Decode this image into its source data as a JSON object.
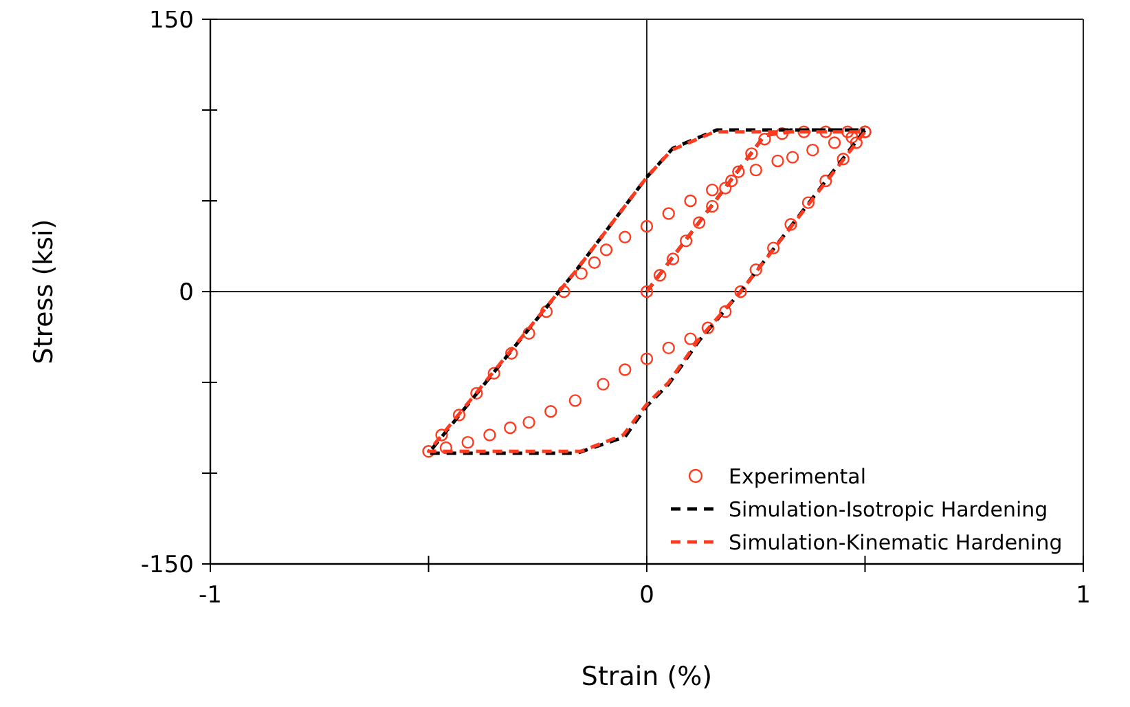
{
  "chart_data": {
    "type": "line",
    "xlabel": "Strain (%)",
    "ylabel": "Stress (ksi)",
    "xlim": [
      -1,
      1
    ],
    "ylim": [
      -150,
      150
    ],
    "xticks": [
      -1,
      {
        "value": -0.5,
        "label": null
      },
      0,
      {
        "value": 0.5,
        "label": null
      },
      1
    ],
    "yticks": [
      -150,
      {
        "value": -100,
        "label": null
      },
      {
        "value": -50,
        "label": null
      },
      0,
      {
        "value": 50,
        "label": null
      },
      {
        "value": 100,
        "label": null
      },
      150
    ],
    "grid": true,
    "legend": "bottom right",
    "series": [
      {
        "name": "Experimental",
        "type": "scatter",
        "marker": "circle",
        "color": "#ff3b1f",
        "x": [
          0,
          0.03,
          0.06,
          0.09,
          0.12,
          0.15,
          0.18,
          0.21,
          0.24,
          0.27,
          0.31,
          0.36,
          0.41,
          0.46,
          0.5,
          0.48,
          0.45,
          0.41,
          0.37,
          0.33,
          0.29,
          0.25,
          0.215,
          0.18,
          0.14,
          0.1,
          0.05,
          0,
          -0.05,
          -0.1,
          -0.164,
          -0.22,
          -0.27,
          -0.313,
          -0.36,
          -0.41,
          -0.46,
          -0.5,
          -0.47,
          -0.43,
          -0.39,
          -0.35,
          -0.31,
          -0.27,
          -0.23,
          -0.19,
          -0.15,
          -0.12,
          -0.093,
          -0.05,
          0,
          0.05,
          0.1,
          0.15,
          0.194,
          0.25,
          0.3,
          0.334,
          0.38,
          0.43,
          0.47,
          0.5
        ],
        "values": [
          0,
          9,
          18,
          28,
          38,
          47,
          57,
          66,
          76,
          84,
          87,
          88,
          88,
          88,
          88,
          82,
          73,
          61,
          49,
          37,
          24,
          12,
          0,
          -11,
          -20,
          -26,
          -31,
          -37,
          -43,
          -51,
          -60,
          -66,
          -72,
          -75,
          -79,
          -83,
          -86,
          -88,
          -79,
          -68,
          -56,
          -45,
          -34,
          -23,
          -11,
          0,
          10,
          16,
          23,
          30,
          36,
          43,
          50,
          56,
          61,
          67,
          72,
          74,
          78,
          82,
          85,
          88
        ]
      },
      {
        "name": "Simulation-Isotropic Hardening",
        "line_style": "dashed",
        "marker": "none",
        "color": "#000000",
        "x": [
          0,
          0.27,
          0.33,
          0.5,
          0.215,
          0.12,
          0.05,
          0,
          -0.05,
          -0.16,
          -0.5,
          -0.164,
          0,
          0.06,
          0.16,
          0.5
        ],
        "values": [
          0,
          86,
          89,
          89,
          0,
          -27,
          -51,
          -63,
          -80,
          -89,
          -89,
          11,
          63,
          79,
          89,
          89
        ]
      },
      {
        "name": "Simulation-Kinematic Hardening",
        "line_style": "dashed",
        "marker": "none",
        "color": "#ff3b1f",
        "x": [
          0,
          0.27,
          0.33,
          0.5,
          0.215,
          0.12,
          0.05,
          0,
          -0.054,
          -0.152,
          -0.5,
          -0.164,
          0,
          0.057,
          0.155,
          0.5
        ],
        "values": [
          0,
          86,
          88,
          88,
          0,
          -26,
          -50,
          -62,
          -79,
          -88,
          -88,
          11,
          63,
          78,
          88,
          88
        ]
      }
    ]
  }
}
